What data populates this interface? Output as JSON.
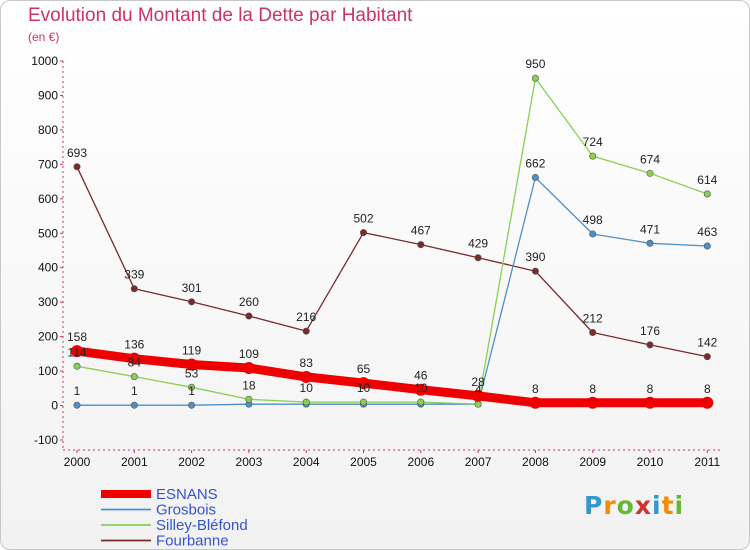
{
  "header": {
    "title": "Evolution du Montant de la Dette par Habitant",
    "unit": "(en €)"
  },
  "logo": {
    "letters": [
      "P",
      "r",
      "o",
      "x",
      "i",
      "t",
      "i"
    ],
    "colors": [
      "#3399cc",
      "#f28c00",
      "#66b833",
      "#cc3333",
      "#3399cc",
      "#f28c00",
      "#66b833"
    ]
  },
  "chart_data": {
    "type": "line",
    "title": "Evolution du Montant de la Dette par Habitant",
    "ylabel": "(en €)",
    "x": [
      "2000",
      "2001",
      "2002",
      "2003",
      "2004",
      "2005",
      "2006",
      "2007",
      "2008",
      "2009",
      "2010",
      "2011"
    ],
    "ylim": [
      -100,
      1000
    ],
    "yticks": [
      -100,
      0,
      100,
      200,
      300,
      400,
      500,
      600,
      700,
      800,
      900,
      1000
    ],
    "grid": false,
    "legend": "bottom-left",
    "series": [
      {
        "name": "ESNANS",
        "color": "#ee0000",
        "values": [
          158,
          136,
          119,
          109,
          83,
          65,
          46,
          28,
          8,
          8,
          8,
          8
        ],
        "labels": [
          "158",
          "136",
          "119",
          "109",
          "83",
          "65",
          "46",
          "28",
          "8",
          "8",
          "8",
          "8"
        ]
      },
      {
        "name": "Grosbois",
        "color": "#4d90c8",
        "values": [
          1,
          1,
          1,
          4,
          4,
          4,
          4,
          4,
          662,
          498,
          471,
          463
        ],
        "labels": [
          "1",
          "1",
          "1",
          "",
          "",
          "",
          "",
          "",
          "662",
          "498",
          "471",
          "463"
        ]
      },
      {
        "name": "Silley-Bléfond",
        "color": "#88d055",
        "values": [
          114,
          84,
          53,
          18,
          10,
          10,
          10,
          4,
          950,
          724,
          674,
          614
        ],
        "labels": [
          "114",
          "84",
          "53",
          "18",
          "10",
          "10",
          "10",
          "4",
          "950",
          "724",
          "674",
          "614"
        ]
      },
      {
        "name": "Fourbanne",
        "color": "#7a2a2a",
        "values": [
          693,
          339,
          301,
          260,
          216,
          502,
          467,
          429,
          390,
          212,
          176,
          142
        ],
        "labels": [
          "693",
          "339",
          "301",
          "260",
          "216",
          "502",
          "467",
          "429",
          "390",
          "212",
          "176",
          "142"
        ]
      }
    ]
  }
}
